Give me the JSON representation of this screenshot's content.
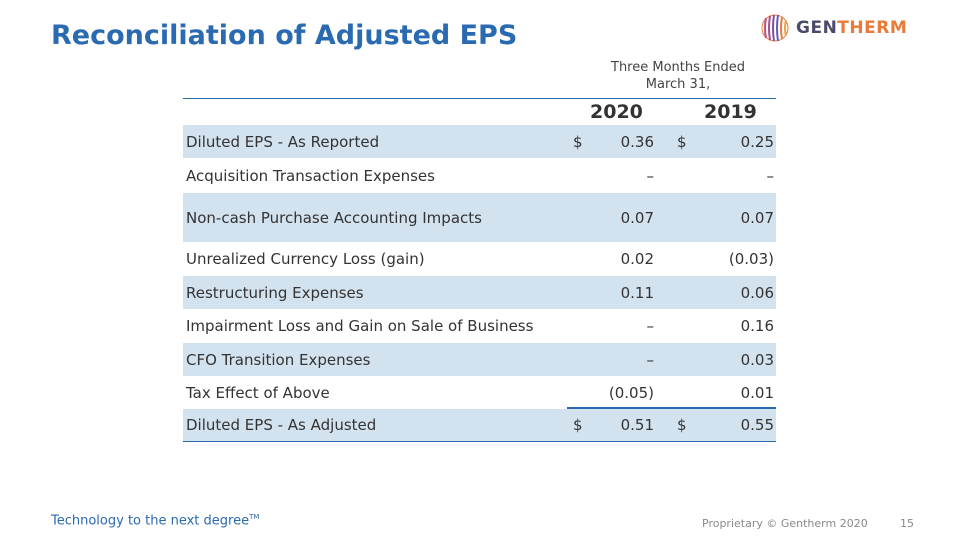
{
  "title": "Reconciliation of Adjusted EPS",
  "logo": {
    "prefix": "GEN",
    "accent": "THERM"
  },
  "period_line1": "Three Months Ended",
  "period_line2": "March 31,",
  "years": [
    "2020",
    "2019"
  ],
  "rows": [
    {
      "label": "Diluted EPS - As Reported",
      "cur1": "$",
      "v1": "0.36",
      "cur2": "$",
      "v2": "0.25"
    },
    {
      "label": "Acquisition Transaction Expenses",
      "cur1": "",
      "v1": "–",
      "cur2": "",
      "v2": "–"
    },
    {
      "label": "Non-cash Purchase Accounting Impacts",
      "cur1": "",
      "v1": "0.07",
      "cur2": "",
      "v2": "0.07"
    },
    {
      "label": "Unrealized Currency Loss (gain)",
      "cur1": "",
      "v1": "0.02",
      "cur2": "",
      "v2": "(0.03)"
    },
    {
      "label": "Restructuring Expenses",
      "cur1": "",
      "v1": "0.11",
      "cur2": "",
      "v2": "0.06"
    },
    {
      "label": "Impairment Loss and Gain on Sale of Business",
      "cur1": "",
      "v1": "–",
      "cur2": "",
      "v2": "0.16"
    },
    {
      "label": "CFO Transition Expenses",
      "cur1": "",
      "v1": "–",
      "cur2": "",
      "v2": "0.03"
    },
    {
      "label": "Tax Effect of Above",
      "cur1": "",
      "v1": "(0.05)",
      "cur2": "",
      "v2": "0.01"
    },
    {
      "label": "Diluted EPS - As Adjusted",
      "cur1": "$",
      "v1": "0.51",
      "cur2": "$",
      "v2": "0.55"
    }
  ],
  "tagline": "Technology to the next degree",
  "tagline_mark": "TM",
  "footer": "Proprietary © Gentherm 2020",
  "page_number": "15",
  "colors": {
    "title": "#2a6ab0",
    "row_shade": "#d3e2ef",
    "logo_accent": "#e87a3a"
  }
}
